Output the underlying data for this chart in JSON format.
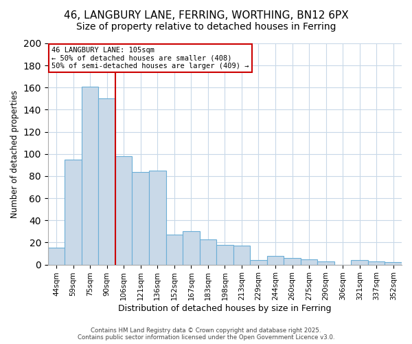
{
  "title": "46, LANGBURY LANE, FERRING, WORTHING, BN12 6PX",
  "subtitle": "Size of property relative to detached houses in Ferring",
  "xlabel": "Distribution of detached houses by size in Ferring",
  "ylabel": "Number of detached properties",
  "bar_labels": [
    "44sqm",
    "59sqm",
    "75sqm",
    "90sqm",
    "106sqm",
    "121sqm",
    "136sqm",
    "152sqm",
    "167sqm",
    "183sqm",
    "198sqm",
    "213sqm",
    "229sqm",
    "244sqm",
    "260sqm",
    "275sqm",
    "290sqm",
    "306sqm",
    "321sqm",
    "337sqm",
    "352sqm"
  ],
  "bar_values": [
    15,
    95,
    161,
    150,
    98,
    84,
    85,
    27,
    30,
    23,
    18,
    17,
    4,
    8,
    6,
    5,
    3,
    0,
    4,
    3,
    2
  ],
  "bar_color": "#c9d9e8",
  "bar_edge_color": "#6baed6",
  "vline_index": 4,
  "vline_color": "#cc0000",
  "ylim": [
    0,
    200
  ],
  "yticks": [
    0,
    20,
    40,
    60,
    80,
    100,
    120,
    140,
    160,
    180,
    200
  ],
  "annotation_title": "46 LANGBURY LANE: 105sqm",
  "annotation_line1": "← 50% of detached houses are smaller (408)",
  "annotation_line2": "50% of semi-detached houses are larger (409) →",
  "annotation_box_color": "#ffffff",
  "annotation_box_edge": "#cc0000",
  "footer1": "Contains HM Land Registry data © Crown copyright and database right 2025.",
  "footer2": "Contains public sector information licensed under the Open Government Licence v3.0.",
  "background_color": "#ffffff",
  "grid_color": "#c8d8e8",
  "title_fontsize": 11,
  "subtitle_fontsize": 10
}
